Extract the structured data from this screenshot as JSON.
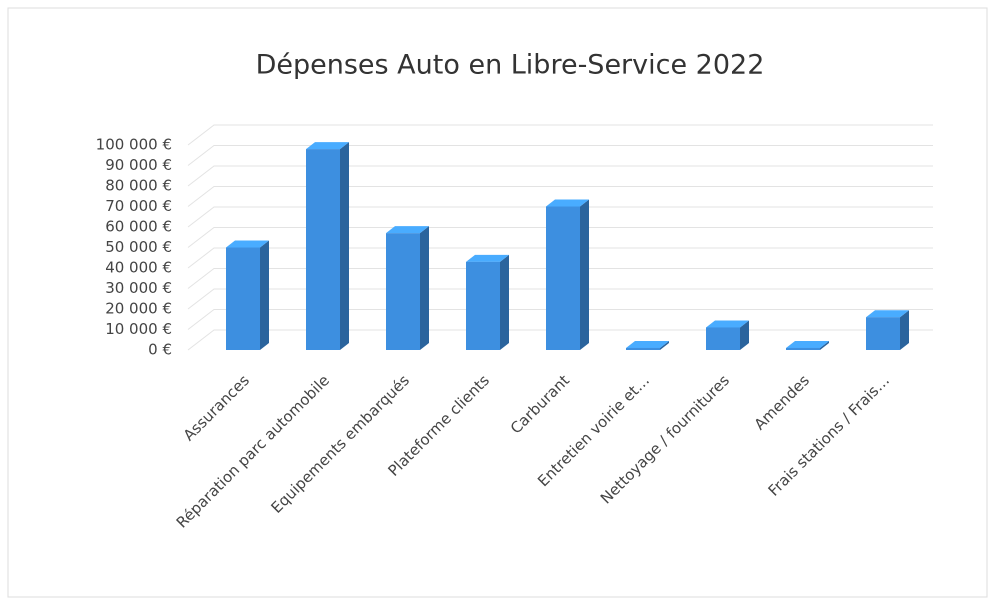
{
  "chart_data": {
    "type": "bar3d",
    "title": "Dépenses Auto en Libre-Service 2022",
    "categories": [
      "Assurances",
      "Réparation parc automobile",
      "Equipements embarqués",
      "Plateforme clients",
      "Carburant",
      "Entretien voirie et…",
      "Nettoyage / fournitures",
      "Amendes",
      "Frais stations / Frais…"
    ],
    "values": [
      50000,
      98000,
      57000,
      43000,
      70000,
      1000,
      11000,
      1000,
      16000
    ],
    "color": "#3d8fe0",
    "ylim": [
      0,
      100000
    ],
    "yticks": [
      {
        "value": 0,
        "label": "0 €"
      },
      {
        "value": 10000,
        "label": "10 000 €"
      },
      {
        "value": 20000,
        "label": "20 000 €"
      },
      {
        "value": 30000,
        "label": "30 000 €"
      },
      {
        "value": 40000,
        "label": "40 000 €"
      },
      {
        "value": 50000,
        "label": "50 000 €"
      },
      {
        "value": 60000,
        "label": "60 000 €"
      },
      {
        "value": 70000,
        "label": "70 000 €"
      },
      {
        "value": 80000,
        "label": "80 000 €"
      },
      {
        "value": 90000,
        "label": "90 000 €"
      },
      {
        "value": 100000,
        "label": "100 000 €"
      }
    ],
    "grid": true
  }
}
